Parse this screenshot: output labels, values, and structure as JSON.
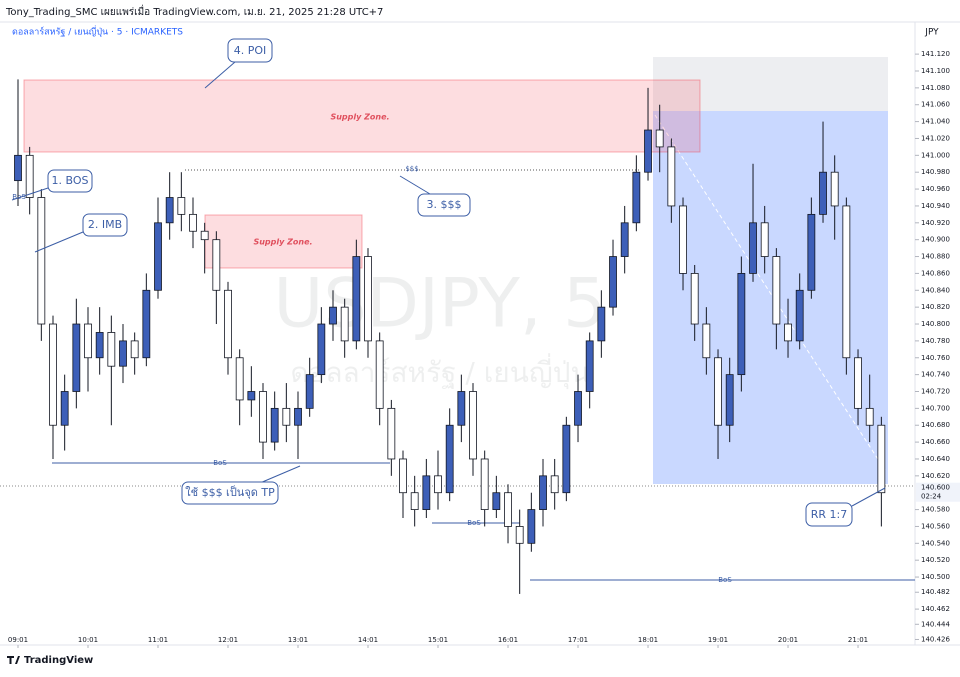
{
  "header": {
    "publisher": "Tony_Trading_SMC เผยแพร่เมื่อ TradingView.com, เม.ย. 21, 2025 21:28 UTC+7"
  },
  "footer": {
    "brand": "TradingView"
  },
  "chart_data": {
    "type": "candlestick",
    "title": "ดอลลาร์สหรัฐ / เยนญี่ปุ่น · 5 · ICMARKETS",
    "currency": "JPY",
    "watermark": [
      "USDJPY, 5",
      "ดอลลาร์สหรัฐ / เยนญี่ปุ่น"
    ],
    "annotations": {
      "poi": "4. POI",
      "bos": "1. BOS",
      "imb": "2. IMB",
      "liquidity": "3. $$$",
      "tp": "ใช้ $$$ เป็นจุด TP",
      "rr": "RR 1:7",
      "supply_major": "Supply Zone.",
      "supply_minor": "Supply Zone.",
      "dollars": "$$$",
      "bos_top": "BoS",
      "bos_1": "BoS",
      "bos_2": "BoS",
      "bos_3": "BoS"
    },
    "up_color": "#3d5fb8",
    "down_color": "#ffffff",
    "last_price": {
      "value": 140.6,
      "label": "140.600"
    },
    "countdown": "02:24",
    "ylim": [
      140.423,
      141.132
    ],
    "yticks": [
      {
        "value": 141.12,
        "label": "141.120"
      },
      {
        "value": 141.1,
        "label": "141.100"
      },
      {
        "value": 141.08,
        "label": "141.080"
      },
      {
        "value": 141.06,
        "label": "141.060"
      },
      {
        "value": 141.04,
        "label": "141.040"
      },
      {
        "value": 141.02,
        "label": "141.020"
      },
      {
        "value": 141,
        "label": "141.000"
      },
      {
        "value": 140.98,
        "label": "140.980"
      },
      {
        "value": 140.96,
        "label": "140.960"
      },
      {
        "value": 140.94,
        "label": "140.940"
      },
      {
        "value": 140.92,
        "label": "140.920"
      },
      {
        "value": 140.9,
        "label": "140.900"
      },
      {
        "value": 140.88,
        "label": "140.880"
      },
      {
        "value": 140.86,
        "label": "140.860"
      },
      {
        "value": 140.84,
        "label": "140.840"
      },
      {
        "value": 140.82,
        "label": "140.820"
      },
      {
        "value": 140.8,
        "label": "140.800"
      },
      {
        "value": 140.78,
        "label": "140.780"
      },
      {
        "value": 140.76,
        "label": "140.760"
      },
      {
        "value": 140.74,
        "label": "140.740"
      },
      {
        "value": 140.72,
        "label": "140.720"
      },
      {
        "value": 140.7,
        "label": "140.700"
      },
      {
        "value": 140.68,
        "label": "140.680"
      },
      {
        "value": 140.66,
        "label": "140.660"
      },
      {
        "value": 140.64,
        "label": "140.640"
      },
      {
        "value": 140.62,
        "label": "140.620"
      },
      {
        "value": 140.58,
        "label": "140.580"
      },
      {
        "value": 140.56,
        "label": "140.560"
      },
      {
        "value": 140.54,
        "label": "140.540"
      },
      {
        "value": 140.52,
        "label": "140.520"
      },
      {
        "value": 140.5,
        "label": "140.500"
      },
      {
        "value": 140.482,
        "label": "140.482"
      },
      {
        "value": 140.462,
        "label": "140.462"
      },
      {
        "value": 140.444,
        "label": "140.444"
      },
      {
        "value": 140.426,
        "label": "140.426"
      }
    ],
    "categories": [
      "09:01",
      null,
      null,
      null,
      null,
      null,
      "10:01",
      null,
      null,
      null,
      null,
      null,
      "11:01",
      null,
      null,
      null,
      null,
      null,
      "12:01",
      null,
      null,
      null,
      null,
      null,
      "13:01",
      null,
      null,
      null,
      null,
      null,
      "14:01",
      null,
      null,
      null,
      null,
      null,
      "15:01",
      null,
      null,
      null,
      null,
      null,
      "16:01",
      null,
      null,
      null,
      null,
      null,
      "17:01",
      null,
      null,
      null,
      null,
      null,
      "18:01",
      null,
      null,
      null,
      null,
      null,
      "19:01",
      null,
      null,
      null,
      null,
      null,
      "20:01",
      null,
      null,
      null,
      null,
      null,
      "21:01",
      null,
      null
    ],
    "open": [
      140.97,
      141.0,
      140.95,
      140.8,
      140.68,
      140.72,
      140.8,
      140.76,
      140.79,
      140.75,
      140.78,
      140.76,
      140.84,
      140.92,
      140.95,
      140.93,
      140.91,
      140.9,
      140.84,
      140.76,
      140.71,
      140.72,
      140.66,
      140.7,
      140.68,
      140.7,
      140.74,
      140.8,
      140.82,
      140.78,
      140.88,
      140.78,
      140.7,
      140.64,
      140.6,
      140.58,
      140.62,
      140.6,
      140.68,
      140.72,
      140.64,
      140.58,
      140.6,
      140.56,
      140.54,
      140.58,
      140.62,
      140.6,
      140.68,
      140.72,
      140.78,
      140.82,
      140.88,
      140.92,
      140.98,
      141.03,
      141.01,
      140.94,
      140.86,
      140.8,
      140.76,
      140.68,
      140.74,
      140.86,
      140.92,
      140.88,
      140.8,
      140.78,
      140.84,
      140.93,
      140.98,
      140.94,
      140.76,
      140.7,
      140.68
    ],
    "high": [
      141.09,
      141.01,
      140.96,
      140.81,
      140.74,
      140.83,
      140.82,
      140.82,
      140.81,
      140.8,
      140.79,
      140.86,
      140.95,
      140.98,
      140.98,
      140.95,
      140.92,
      140.91,
      140.85,
      140.77,
      140.75,
      140.73,
      140.72,
      140.73,
      140.72,
      140.76,
      140.82,
      140.84,
      140.83,
      140.9,
      140.89,
      140.79,
      140.71,
      140.65,
      140.62,
      140.64,
      140.65,
      140.7,
      140.74,
      140.73,
      140.65,
      140.62,
      140.61,
      140.58,
      140.6,
      140.64,
      140.64,
      140.69,
      140.74,
      140.79,
      140.84,
      140.9,
      140.94,
      141.0,
      141.08,
      141.06,
      141.02,
      140.95,
      140.87,
      140.82,
      140.77,
      140.76,
      140.88,
      140.99,
      140.94,
      140.89,
      140.83,
      140.86,
      140.95,
      141.04,
      141.0,
      140.95,
      140.77,
      140.74,
      140.69
    ],
    "low": [
      140.94,
      140.93,
      140.78,
      140.64,
      140.65,
      140.7,
      140.72,
      140.74,
      140.68,
      140.73,
      140.74,
      140.75,
      140.83,
      140.9,
      140.91,
      140.89,
      140.86,
      140.8,
      140.74,
      140.68,
      140.69,
      140.64,
      140.65,
      140.66,
      140.64,
      140.69,
      140.73,
      140.78,
      140.76,
      140.77,
      140.76,
      140.68,
      140.62,
      140.57,
      140.56,
      140.57,
      140.58,
      140.59,
      140.66,
      140.62,
      140.56,
      140.57,
      140.54,
      140.48,
      140.53,
      140.56,
      140.58,
      140.59,
      140.66,
      140.7,
      140.76,
      140.81,
      140.86,
      140.91,
      140.97,
      140.98,
      140.92,
      140.84,
      140.78,
      140.74,
      140.64,
      140.66,
      140.72,
      140.85,
      140.86,
      140.77,
      140.76,
      140.77,
      140.83,
      140.92,
      140.9,
      140.74,
      140.68,
      140.66,
      140.56
    ],
    "close": [
      141.0,
      140.95,
      140.8,
      140.68,
      140.72,
      140.8,
      140.76,
      140.79,
      140.75,
      140.78,
      140.76,
      140.84,
      140.92,
      140.95,
      140.93,
      140.91,
      140.9,
      140.84,
      140.76,
      140.71,
      140.72,
      140.66,
      140.7,
      140.68,
      140.7,
      140.74,
      140.8,
      140.82,
      140.78,
      140.88,
      140.78,
      140.7,
      140.64,
      140.6,
      140.58,
      140.62,
      140.6,
      140.68,
      140.72,
      140.64,
      140.58,
      140.6,
      140.56,
      140.54,
      140.58,
      140.62,
      140.6,
      140.68,
      140.72,
      140.78,
      140.82,
      140.88,
      140.92,
      140.98,
      141.03,
      141.01,
      140.94,
      140.86,
      140.8,
      140.76,
      140.68,
      140.74,
      140.86,
      140.92,
      140.88,
      140.8,
      140.78,
      140.84,
      140.93,
      140.98,
      140.94,
      140.76,
      140.7,
      140.68,
      140.6
    ]
  }
}
